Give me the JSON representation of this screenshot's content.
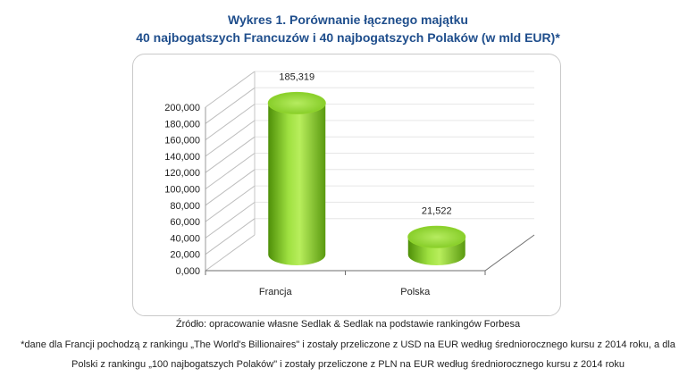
{
  "title_line1": "Wykres 1. Porównanie łącznego majątku",
  "title_line2": "40 najbogatszych Francuzów i 40 najbogatszych Polaków (w mld EUR)*",
  "source_note": "Źródło: opracowanie własne Sedlak & Sedlak na podstawie rankingów Forbesa",
  "footnote_line1": "*dane dla Francji pochodzą z rankingu „The World's Billionaires\" i zostały przeliczone z USD na EUR według średniorocznego kursu z 2014 roku, a dla",
  "footnote_line2": "Polski z rankingu „100 najbogatszych Polaków\" i zostały przeliczone z PLN na EUR według średniorocznego kursu z 2014 roku",
  "colors": {
    "bar": "#7fc820",
    "bar_top": "#a6e04a",
    "title": "#1f4e8c"
  },
  "chart_data": {
    "type": "bar",
    "title": "Wykres 1. Porównanie łącznego majątku 40 najbogatszych Francuzów i 40 najbogatszych Polaków (w mld EUR)*",
    "categories": [
      "Francja",
      "Polska"
    ],
    "values": [
      185.319,
      21.522
    ],
    "value_labels": [
      "185,319",
      "21,522"
    ],
    "ylim": [
      0,
      200
    ],
    "yticks": [
      0,
      20,
      40,
      60,
      80,
      100,
      120,
      140,
      160,
      180,
      200
    ],
    "ytick_labels": [
      "0,000",
      "20,000",
      "40,000",
      "60,000",
      "80,000",
      "100,000",
      "120,000",
      "140,000",
      "160,000",
      "180,000",
      "200,000"
    ],
    "grid": true,
    "style": "3d-cylinder"
  }
}
